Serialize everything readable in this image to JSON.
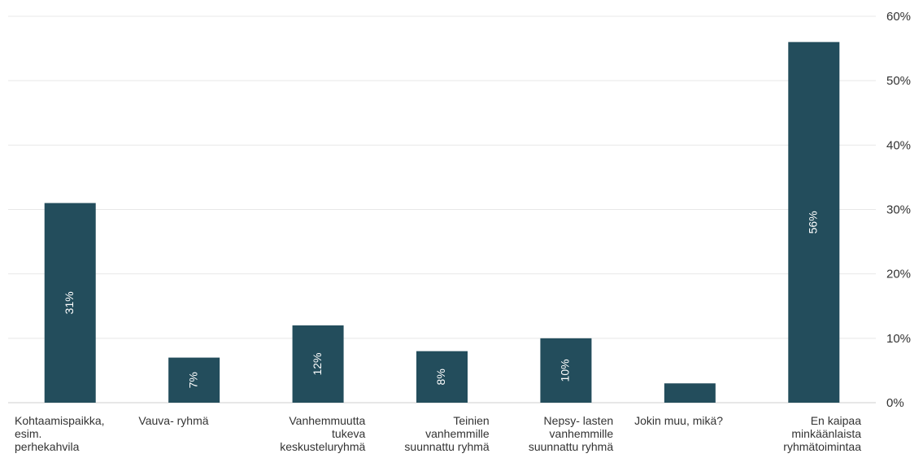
{
  "chart_data": {
    "type": "bar",
    "title": "",
    "xlabel": "",
    "ylabel": "",
    "categories": [
      [
        "Kohtaamispaikka,",
        "esim.",
        "perhekahvila"
      ],
      [
        "Vauva- ryhmä"
      ],
      [
        "Vanhemmuutta",
        "tukeva",
        "keskusteluryhmä"
      ],
      [
        "Teinien",
        "vanhemmille",
        "suunnattu ryhmä"
      ],
      [
        "Nepsy- lasten",
        "vanhemmille",
        "suunnattu ryhmä"
      ],
      [
        "Jokin muu, mikä?"
      ],
      [
        "En kaipaa",
        "minkäänlaista",
        "ryhmätoimintaa"
      ]
    ],
    "category_align": [
      "left",
      "left",
      "right",
      "right",
      "right",
      "left",
      "right"
    ],
    "values": [
      31,
      7,
      12,
      8,
      10,
      3,
      56
    ],
    "data_labels": [
      "31%",
      "7%",
      "12%",
      "8%",
      "10%",
      "",
      "56%"
    ],
    "ylim": [
      0,
      60
    ],
    "yticks": [
      0,
      10,
      20,
      30,
      40,
      50,
      60
    ],
    "ytick_labels": [
      "0%",
      "10%",
      "20%",
      "30%",
      "40%",
      "50%",
      "60%"
    ],
    "y_axis_position": "right",
    "grid": true,
    "colors": {
      "bar": "#234d5c",
      "grid": "#e8e8e8",
      "text": "#333333",
      "data_label": "#ffffff"
    }
  }
}
